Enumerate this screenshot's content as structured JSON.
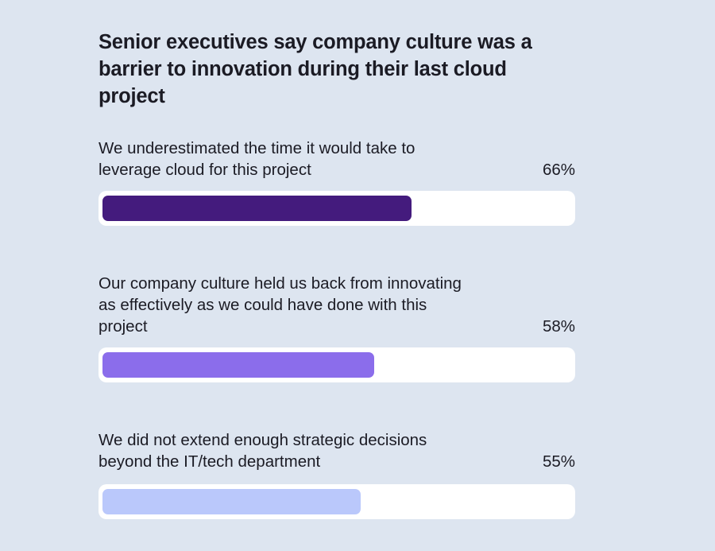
{
  "chart_data": {
    "type": "bar",
    "orientation": "horizontal",
    "title": "Senior executives say company culture was a barrier to innovation during their last cloud project",
    "categories": [
      "We underestimated the time it would take to leverage cloud for this project",
      "Our company culture held us back from innovating as effectively as we could have done with this project",
      "We did not extend enough strategic decisions beyond the IT/tech department"
    ],
    "values": [
      66,
      58,
      55
    ],
    "value_labels": [
      "66%",
      "58%",
      "55%"
    ],
    "unit": "%",
    "xlim": [
      0,
      100
    ],
    "bar_colors": [
      "#441b7d",
      "#8b6deb",
      "#bac8fb"
    ],
    "track_color": "#ffffff",
    "background_color": "#dde5f0",
    "grid": false
  }
}
